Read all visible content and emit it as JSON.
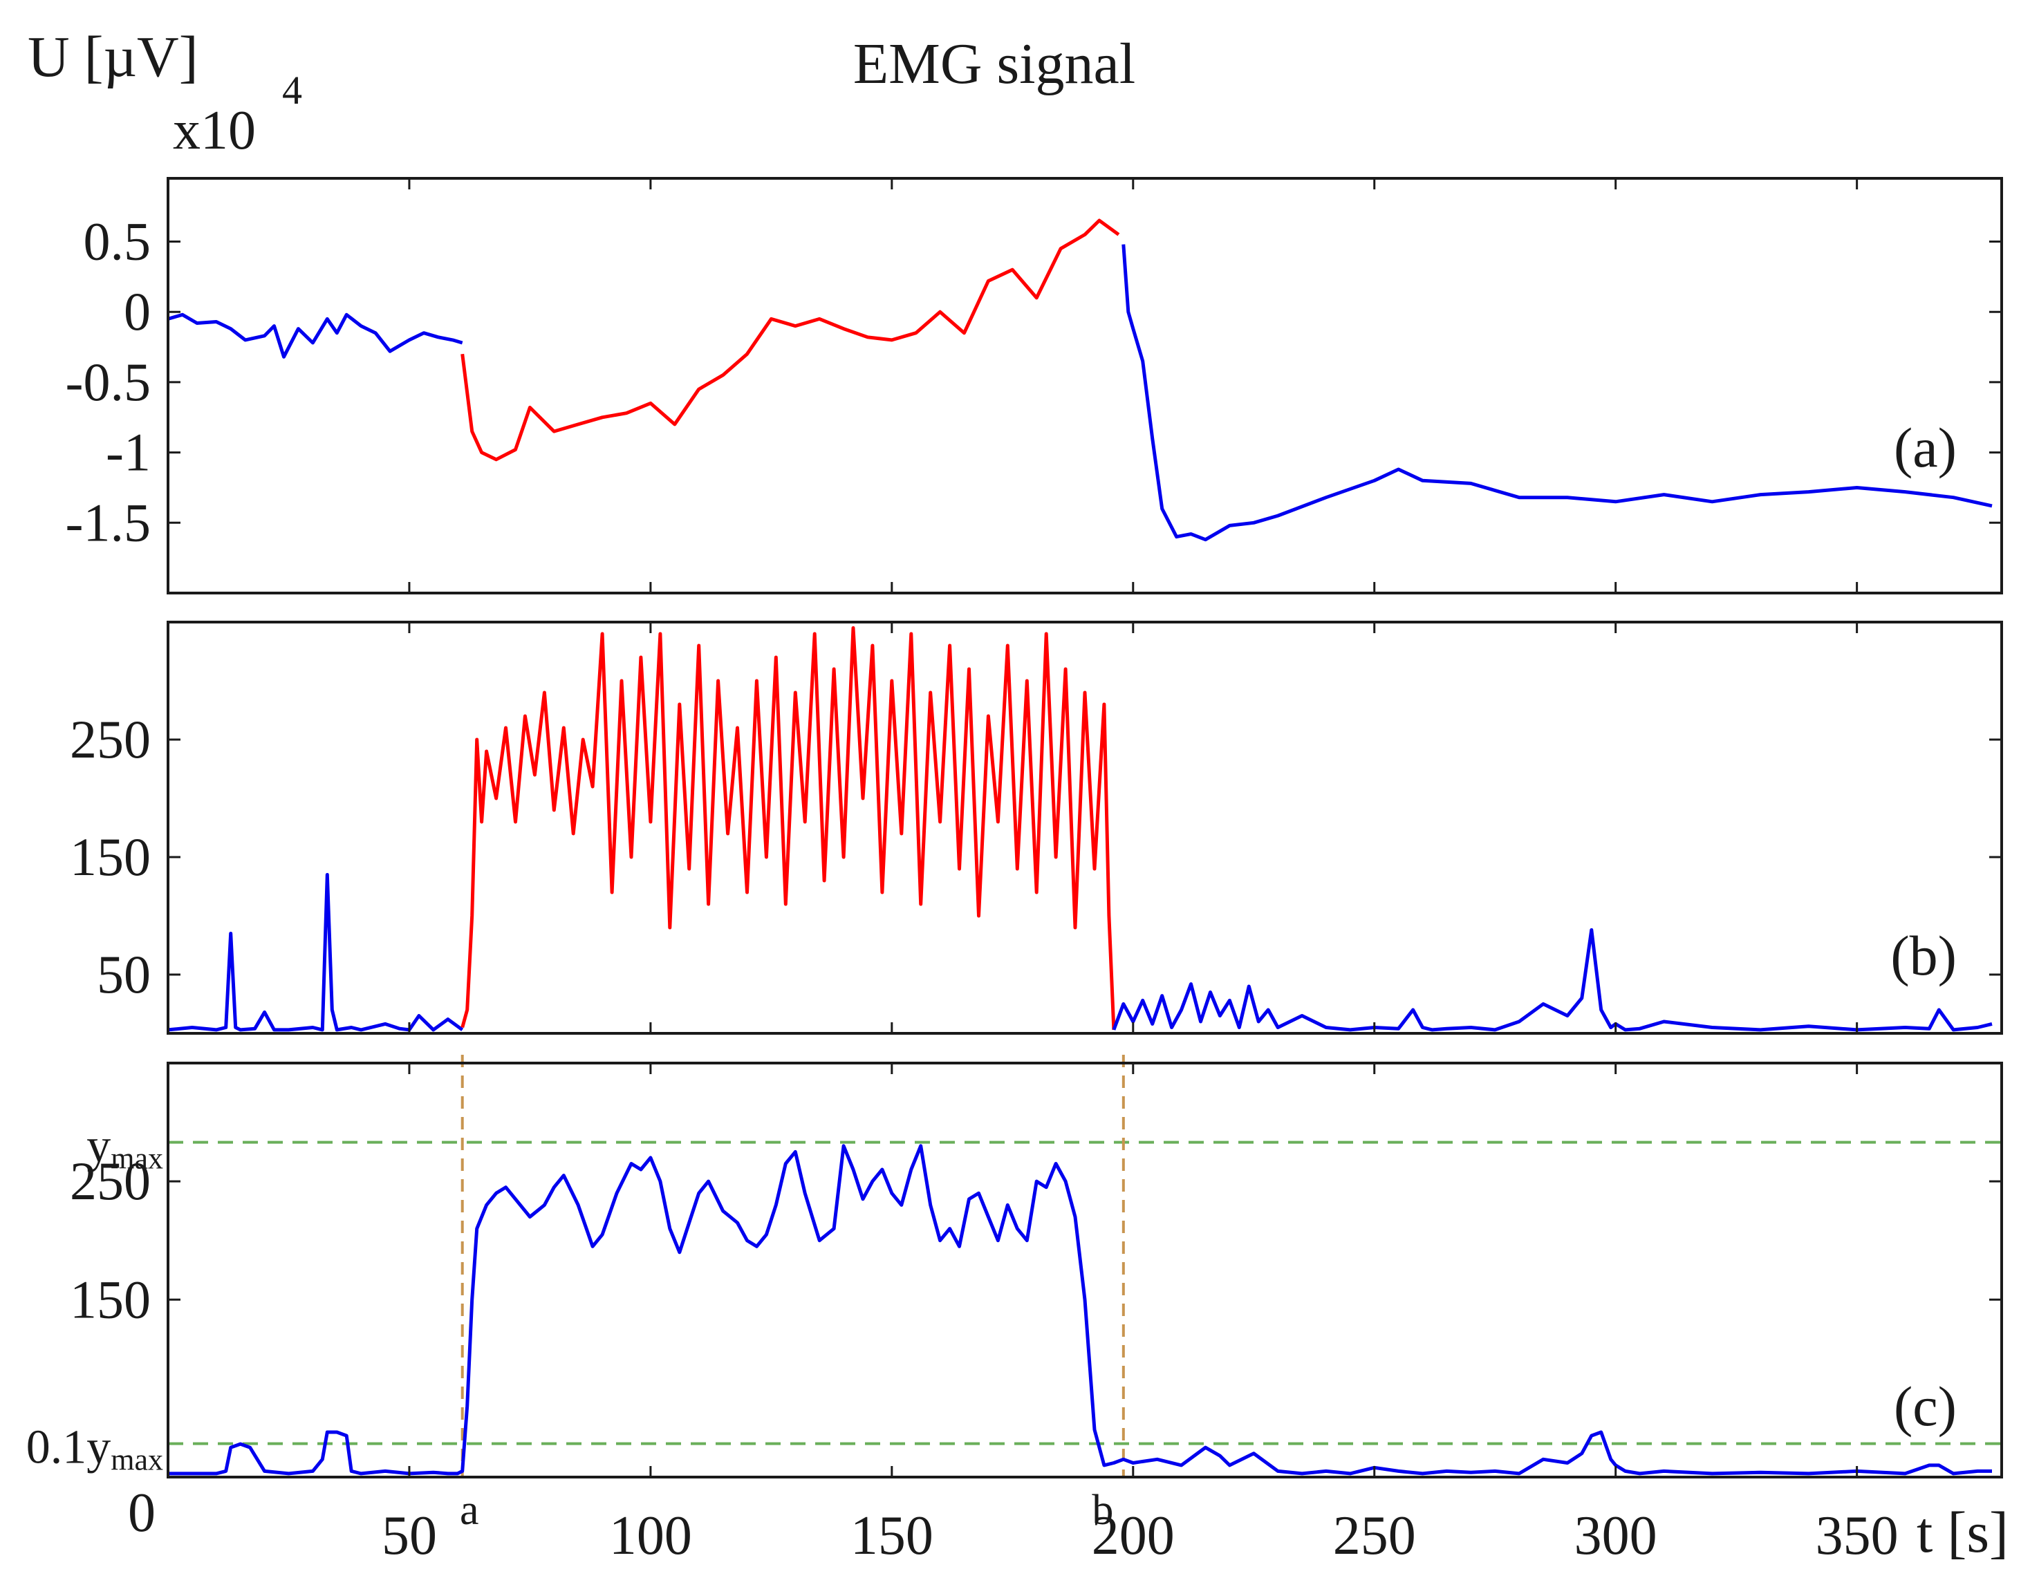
{
  "chart_data": {
    "type": "line",
    "title": "EMG signal",
    "ylabel": "U [µV]",
    "y_scale_note": "x10",
    "y_scale_exponent": "4",
    "xlabel": "t [s]",
    "xlim": [
      0,
      380
    ],
    "x_ticks": [
      "0",
      "50",
      "100",
      "150",
      "200",
      "250",
      "300",
      "350"
    ],
    "x_tick_values": [
      0,
      50,
      100,
      150,
      200,
      250,
      300,
      350
    ],
    "event_markers": [
      {
        "label": "a",
        "x": 61
      },
      {
        "label": "b",
        "x": 198
      }
    ],
    "colors": {
      "baseline": "#0000ee",
      "active": "#ff0000",
      "threshold": "#6aaf5a",
      "marker": "#c89550"
    },
    "panels": [
      {
        "id": "a",
        "tag": "(a)",
        "ylim": [
          -2.0,
          0.95
        ],
        "y_ticks": [
          "0.5",
          "0",
          "-0.5",
          "-1",
          "-1.5"
        ],
        "y_tick_values": [
          0.5,
          0,
          -0.5,
          -1,
          -1.5
        ],
        "series": [
          {
            "color_key": "baseline",
            "x": [
              0,
              3,
              6,
              10,
              13,
              16,
              20,
              22,
              24,
              27,
              30,
              33,
              35,
              37,
              40,
              43,
              46,
              50,
              53,
              56,
              59,
              61
            ],
            "y": [
              -0.05,
              -0.02,
              -0.08,
              -0.07,
              -0.12,
              -0.2,
              -0.17,
              -0.1,
              -0.32,
              -0.12,
              -0.22,
              -0.05,
              -0.15,
              -0.02,
              -0.1,
              -0.15,
              -0.28,
              -0.2,
              -0.15,
              -0.18,
              -0.2,
              -0.22
            ]
          },
          {
            "color_key": "active",
            "x": [
              61,
              63,
              65,
              68,
              72,
              75,
              80,
              85,
              90,
              95,
              100,
              105,
              110,
              115,
              120,
              125,
              130,
              135,
              140,
              145,
              150,
              155,
              160,
              165,
              170,
              175,
              180,
              185,
              190,
              193,
              197
            ],
            "y": [
              -0.3,
              -0.85,
              -1.0,
              -1.05,
              -0.98,
              -0.68,
              -0.85,
              -0.8,
              -0.75,
              -0.72,
              -0.65,
              -0.8,
              -0.55,
              -0.45,
              -0.3,
              -0.05,
              -0.1,
              -0.05,
              -0.12,
              -0.18,
              -0.2,
              -0.15,
              0.0,
              -0.15,
              0.22,
              0.3,
              0.1,
              0.45,
              0.55,
              0.65,
              0.55
            ]
          },
          {
            "color_key": "baseline",
            "x": [
              198,
              199,
              200,
              202,
              204,
              206,
              209,
              212,
              215,
              220,
              225,
              230,
              240,
              250,
              255,
              260,
              270,
              280,
              290,
              300,
              310,
              320,
              330,
              340,
              350,
              360,
              370,
              378
            ],
            "y": [
              0.48,
              0.0,
              -0.12,
              -0.35,
              -0.9,
              -1.4,
              -1.6,
              -1.58,
              -1.62,
              -1.52,
              -1.5,
              -1.45,
              -1.32,
              -1.2,
              -1.12,
              -1.2,
              -1.22,
              -1.32,
              -1.32,
              -1.35,
              -1.3,
              -1.35,
              -1.3,
              -1.28,
              -1.25,
              -1.28,
              -1.32,
              -1.38
            ]
          }
        ]
      },
      {
        "id": "b",
        "tag": "(b)",
        "ylim": [
          0,
          350
        ],
        "y_ticks": [
          "250",
          "150",
          "50"
        ],
        "y_tick_values": [
          250,
          150,
          50
        ],
        "series": [
          {
            "color_key": "baseline",
            "x": [
              0,
              5,
              10,
              12,
              13,
              14,
              15,
              18,
              20,
              22,
              25,
              30,
              32,
              33,
              34,
              35,
              38,
              40,
              45,
              48,
              50,
              52,
              55,
              58,
              61
            ],
            "y": [
              3,
              5,
              3,
              5,
              85,
              5,
              3,
              4,
              18,
              3,
              3,
              5,
              3,
              135,
              20,
              3,
              5,
              3,
              8,
              4,
              3,
              15,
              3,
              12,
              3
            ]
          },
          {
            "color_key": "active",
            "x": [
              61,
              62,
              63,
              64,
              65,
              66,
              68,
              70,
              72,
              74,
              76,
              78,
              80,
              82,
              84,
              86,
              88,
              90,
              92,
              94,
              96,
              98,
              100,
              102,
              104,
              106,
              108,
              110,
              112,
              114,
              116,
              118,
              120,
              122,
              124,
              126,
              128,
              130,
              132,
              134,
              136,
              138,
              140,
              142,
              144,
              146,
              148,
              150,
              152,
              154,
              156,
              158,
              160,
              162,
              164,
              166,
              168,
              170,
              172,
              174,
              176,
              178,
              180,
              182,
              184,
              186,
              188,
              190,
              192,
              194,
              195,
              196
            ],
            "y": [
              5,
              20,
              100,
              250,
              180,
              240,
              200,
              260,
              180,
              270,
              220,
              290,
              190,
              260,
              170,
              250,
              210,
              340,
              120,
              300,
              150,
              320,
              180,
              340,
              90,
              280,
              140,
              330,
              110,
              300,
              170,
              260,
              120,
              300,
              150,
              320,
              110,
              290,
              180,
              340,
              130,
              310,
              150,
              345,
              200,
              330,
              120,
              300,
              170,
              340,
              110,
              290,
              180,
              330,
              140,
              310,
              100,
              270,
              180,
              330,
              140,
              300,
              120,
              340,
              150,
              310,
              90,
              290,
              140,
              280,
              100,
              3
            ]
          },
          {
            "color_key": "baseline",
            "x": [
              196,
              198,
              200,
              202,
              204,
              206,
              208,
              210,
              212,
              214,
              216,
              218,
              220,
              222,
              224,
              226,
              228,
              230,
              235,
              240,
              245,
              250,
              255,
              258,
              260,
              262,
              265,
              270,
              275,
              280,
              285,
              290,
              293,
              295,
              297,
              299,
              300,
              302,
              305,
              310,
              320,
              330,
              340,
              350,
              360,
              365,
              367,
              370,
              375,
              378
            ],
            "y": [
              3,
              25,
              10,
              28,
              8,
              32,
              5,
              20,
              42,
              10,
              35,
              15,
              28,
              5,
              40,
              10,
              20,
              5,
              15,
              5,
              3,
              5,
              4,
              20,
              5,
              3,
              4,
              5,
              3,
              10,
              25,
              15,
              30,
              88,
              20,
              5,
              8,
              3,
              4,
              10,
              5,
              3,
              6,
              3,
              5,
              4,
              20,
              3,
              5,
              8
            ]
          }
        ]
      },
      {
        "id": "c",
        "tag": "(c)",
        "ylim": [
          0,
          350
        ],
        "y_ticks": [
          "250",
          "150"
        ],
        "y_tick_values": [
          250,
          150
        ],
        "threshold_labels": [
          {
            "main": "y",
            "sub": "max",
            "value": 283
          },
          {
            "main": "0.1y",
            "sub": "max",
            "value": 28.3
          }
        ],
        "series": [
          {
            "color_key": "baseline",
            "x": [
              0,
              5,
              10,
              12,
              13,
              15,
              17,
              20,
              25,
              30,
              32,
              33,
              35,
              37,
              38,
              40,
              45,
              50,
              55,
              58,
              60,
              61,
              62,
              63,
              64,
              66,
              68,
              70,
              72,
              75,
              78,
              80,
              82,
              85,
              88,
              90,
              93,
              96,
              98,
              100,
              102,
              104,
              106,
              108,
              110,
              112,
              115,
              118,
              120,
              122,
              124,
              126,
              128,
              130,
              132,
              135,
              138,
              140,
              142,
              144,
              146,
              148,
              150,
              152,
              154,
              156,
              158,
              160,
              162,
              164,
              166,
              168,
              170,
              172,
              174,
              176,
              178,
              180,
              182,
              184,
              186,
              188,
              190,
              192,
              194,
              196,
              198,
              200,
              205,
              210,
              215,
              218,
              220,
              225,
              230,
              235,
              240,
              245,
              250,
              255,
              260,
              265,
              270,
              275,
              280,
              285,
              290,
              293,
              295,
              297,
              299,
              300,
              302,
              305,
              310,
              320,
              330,
              340,
              350,
              360,
              365,
              367,
              370,
              375,
              378
            ],
            "y": [
              3,
              3,
              3,
              5,
              25,
              28,
              25,
              5,
              3,
              5,
              15,
              38,
              38,
              35,
              5,
              3,
              5,
              3,
              4,
              3,
              3,
              5,
              60,
              150,
              210,
              230,
              240,
              245,
              235,
              220,
              230,
              245,
              255,
              230,
              195,
              205,
              240,
              265,
              260,
              270,
              250,
              210,
              190,
              215,
              240,
              250,
              225,
              215,
              200,
              195,
              205,
              230,
              265,
              275,
              240,
              200,
              210,
              280,
              260,
              235,
              250,
              260,
              240,
              230,
              260,
              280,
              230,
              200,
              210,
              195,
              235,
              240,
              220,
              200,
              230,
              210,
              200,
              250,
              245,
              265,
              250,
              220,
              150,
              40,
              10,
              12,
              15,
              12,
              15,
              10,
              25,
              18,
              10,
              20,
              5,
              3,
              5,
              3,
              8,
              5,
              3,
              5,
              4,
              5,
              3,
              15,
              12,
              20,
              35,
              38,
              15,
              10,
              5,
              3,
              5,
              3,
              4,
              3,
              5,
              3,
              10,
              10,
              3,
              5,
              5
            ]
          }
        ]
      }
    ]
  }
}
